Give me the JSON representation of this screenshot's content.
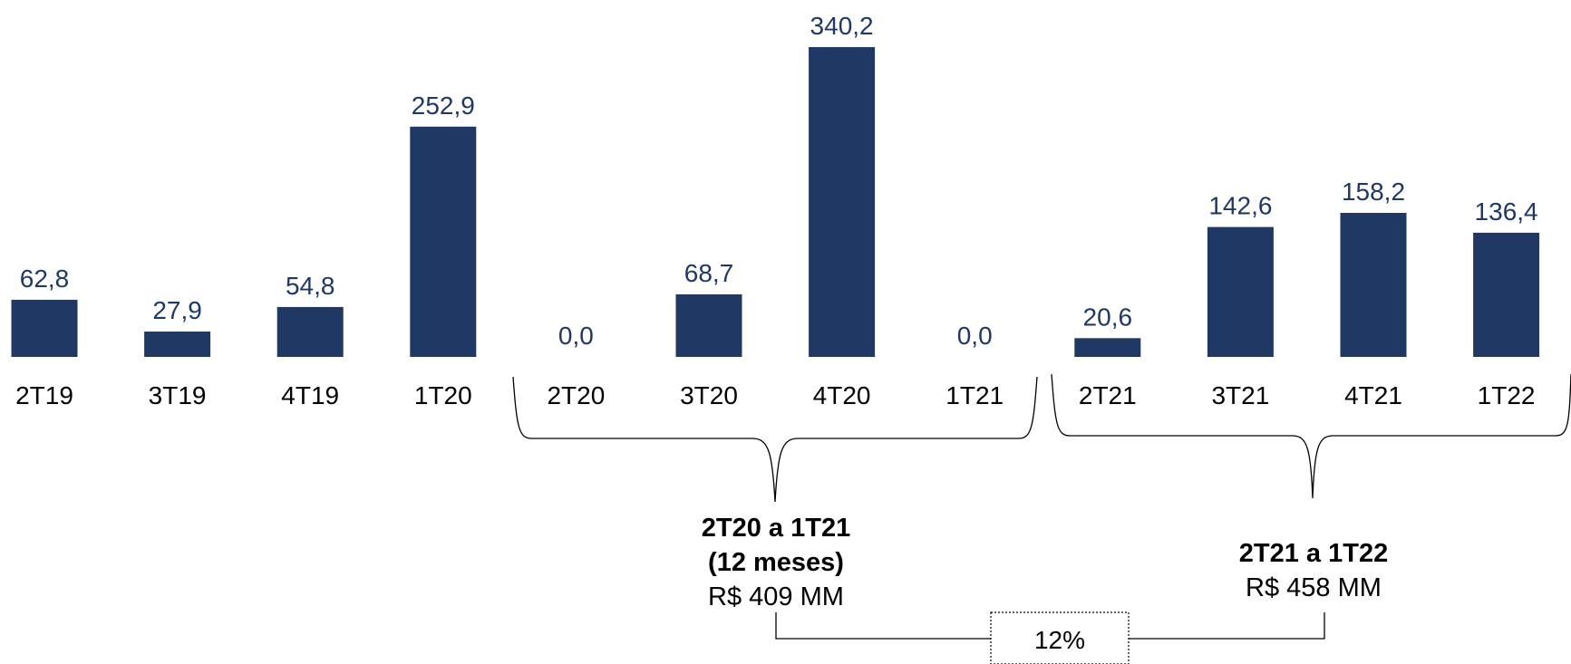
{
  "chart_data": {
    "type": "bar",
    "categories": [
      "2T19",
      "3T19",
      "4T19",
      "1T20",
      "2T20",
      "3T20",
      "4T20",
      "1T21",
      "2T21",
      "3T21",
      "4T21",
      "1T22"
    ],
    "values": [
      62.8,
      27.9,
      54.8,
      252.9,
      0.0,
      68.7,
      340.2,
      0.0,
      20.6,
      142.6,
      158.2,
      136.4
    ],
    "value_labels": [
      "62,8",
      "27,9",
      "54,8",
      "252,9",
      "0,0",
      "68,7",
      "340,2",
      "0,0",
      "20,6",
      "142,6",
      "158,2",
      "136,4"
    ],
    "title": "",
    "xlabel": "",
    "ylabel": "",
    "ylim": [
      0,
      340.2
    ],
    "grid": false,
    "legend": "none",
    "bar_color": "#203864",
    "label_color": "#203864",
    "groups": [
      {
        "range": [
          "2T20",
          "1T21"
        ],
        "title_line1": "2T20 a 1T21",
        "title_line2": "(12 meses)",
        "total": "R$ 409 MM"
      },
      {
        "range": [
          "2T21",
          "1T22"
        ],
        "title_line1": "2T21 a 1T22",
        "total": "R$ 458 MM"
      }
    ],
    "comparison": {
      "label": "12%",
      "from_group": 0,
      "to_group": 1
    }
  }
}
